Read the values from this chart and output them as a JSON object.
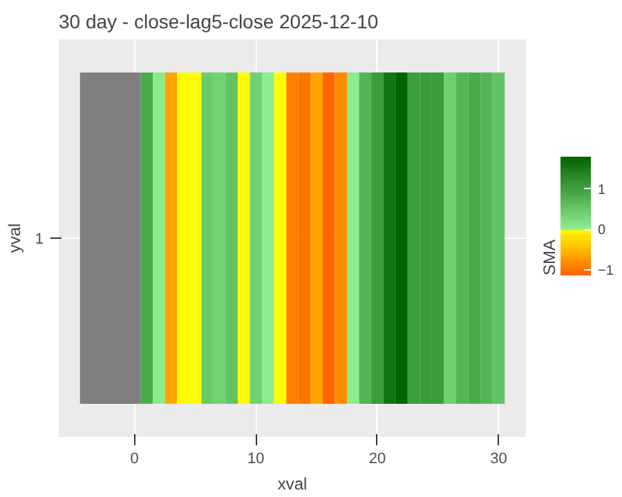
{
  "chart_data": {
    "type": "heatmap",
    "title": "30 day - close-lag5-close  2025-12-10",
    "xlabel": "xval",
    "ylabel": "yval",
    "clabel": "SMA",
    "x": [
      1,
      2,
      3,
      4,
      5,
      6,
      7,
      8,
      9,
      10,
      11,
      12,
      13,
      14,
      15,
      16,
      17,
      18,
      19,
      20,
      21,
      22,
      23,
      24,
      25,
      26,
      27,
      28,
      29,
      30
    ],
    "y_categories": [
      "1"
    ],
    "cells": [
      [
        0.88,
        0.05,
        -0.65,
        -0.02,
        -0.02,
        0.46,
        0.37,
        0.56,
        -0.02,
        0.37,
        0.02,
        -0.02,
        -0.91,
        -0.98,
        -0.65,
        -1.1,
        -0.82,
        0.03,
        0.74,
        1.07,
        1.56,
        1.8,
        1.04,
        1.07,
        1.07,
        0.4,
        0.74,
        0.88,
        0.74,
        0.56
      ]
    ],
    "xlim": [
      -6.25,
      32.25
    ],
    "xticks": [
      0,
      10,
      20,
      30
    ],
    "bands": [
      {
        "axis": "x",
        "from": -4.5,
        "to": 0.5,
        "color": "#7f7f7f"
      }
    ],
    "clim": [
      -1.14,
      1.8
    ],
    "cticks": [
      -1,
      0,
      1
    ],
    "grid": true
  }
}
